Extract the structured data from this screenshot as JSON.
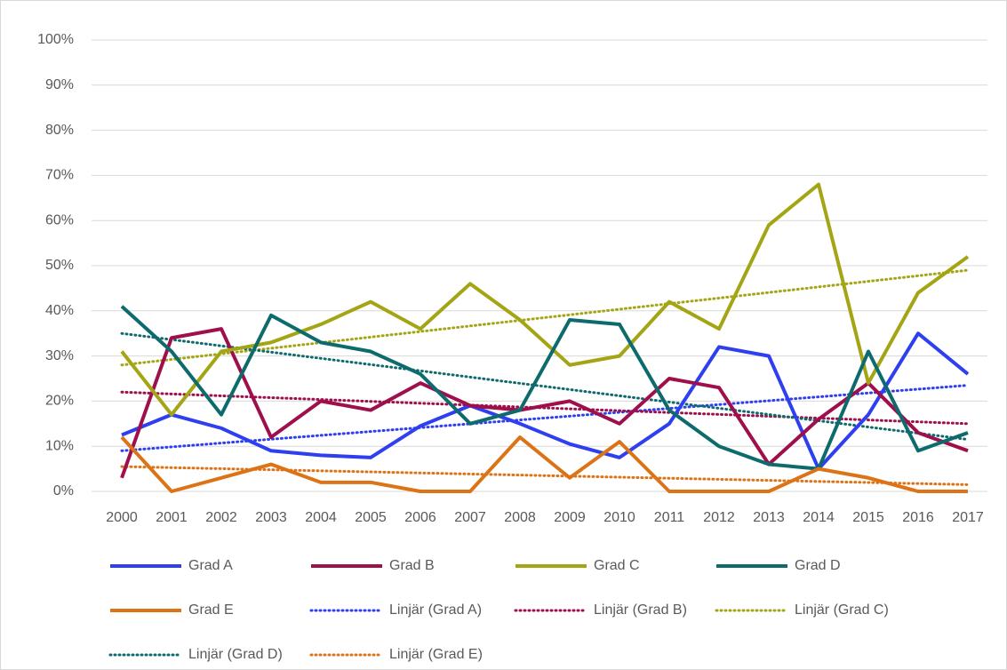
{
  "chart_data": {
    "type": "line",
    "categories": [
      "2000",
      "2001",
      "2002",
      "2003",
      "2004",
      "2005",
      "2006",
      "2007",
      "2008",
      "2009",
      "2010",
      "2011",
      "2012",
      "2013",
      "2014",
      "2015",
      "2016",
      "2017"
    ],
    "series": [
      {
        "name": "Grad A",
        "color": "#2e3ff0",
        "values": [
          12.5,
          17,
          14,
          9,
          8,
          7.5,
          14.5,
          19,
          15,
          10.5,
          7.5,
          15,
          32,
          30,
          5,
          17,
          35,
          26
        ]
      },
      {
        "name": "Grad B",
        "color": "#9e0f4b",
        "values": [
          3,
          34,
          36,
          12,
          20,
          18,
          24,
          19,
          18,
          20,
          15,
          25,
          23,
          6,
          16,
          24,
          13,
          9
        ]
      },
      {
        "name": "Grad C",
        "color": "#a4a514",
        "values": [
          31,
          17,
          31,
          33,
          37,
          42,
          36,
          46,
          38,
          28,
          30,
          42,
          36,
          59,
          68,
          24,
          44,
          52
        ]
      },
      {
        "name": "Grad D",
        "color": "#0e6b6d",
        "values": [
          41,
          31,
          17,
          39,
          33,
          31,
          26,
          15,
          18,
          38,
          37,
          18,
          10,
          6,
          5,
          31,
          9,
          13
        ]
      },
      {
        "name": "Grad E",
        "color": "#dc7417",
        "values": [
          12,
          0,
          3,
          6,
          2,
          2,
          0,
          0,
          12,
          3,
          11,
          0,
          0,
          0,
          5,
          3,
          0,
          0
        ]
      }
    ],
    "trendlines": [
      {
        "name": "Linjär (Grad A)",
        "color": "#2e3ff0",
        "values": [
          9,
          23.5
        ]
      },
      {
        "name": "Linjär (Grad B)",
        "color": "#9e0f4b",
        "values": [
          22,
          15
        ]
      },
      {
        "name": "Linjär (Grad C)",
        "color": "#a4a514",
        "values": [
          28,
          49
        ]
      },
      {
        "name": "Linjär (Grad D)",
        "color": "#0e6b6d",
        "values": [
          35,
          11.5
        ]
      },
      {
        "name": "Linjär (Grad E)",
        "color": "#dc7417",
        "values": [
          5.5,
          1.5
        ]
      }
    ],
    "ylim": [
      0,
      100
    ],
    "yticks": [
      {
        "value": 0,
        "label": "0%"
      },
      {
        "value": 10,
        "label": "10%"
      },
      {
        "value": 20,
        "label": "20%"
      },
      {
        "value": 30,
        "label": "30%"
      },
      {
        "value": 40,
        "label": "40%"
      },
      {
        "value": 50,
        "label": "50%"
      },
      {
        "value": 60,
        "label": "60%"
      },
      {
        "value": 70,
        "label": "70%"
      },
      {
        "value": 80,
        "label": "80%"
      },
      {
        "value": 90,
        "label": "90%"
      },
      {
        "value": 100,
        "label": "100%"
      }
    ],
    "grid": true,
    "legend": "bottom"
  }
}
